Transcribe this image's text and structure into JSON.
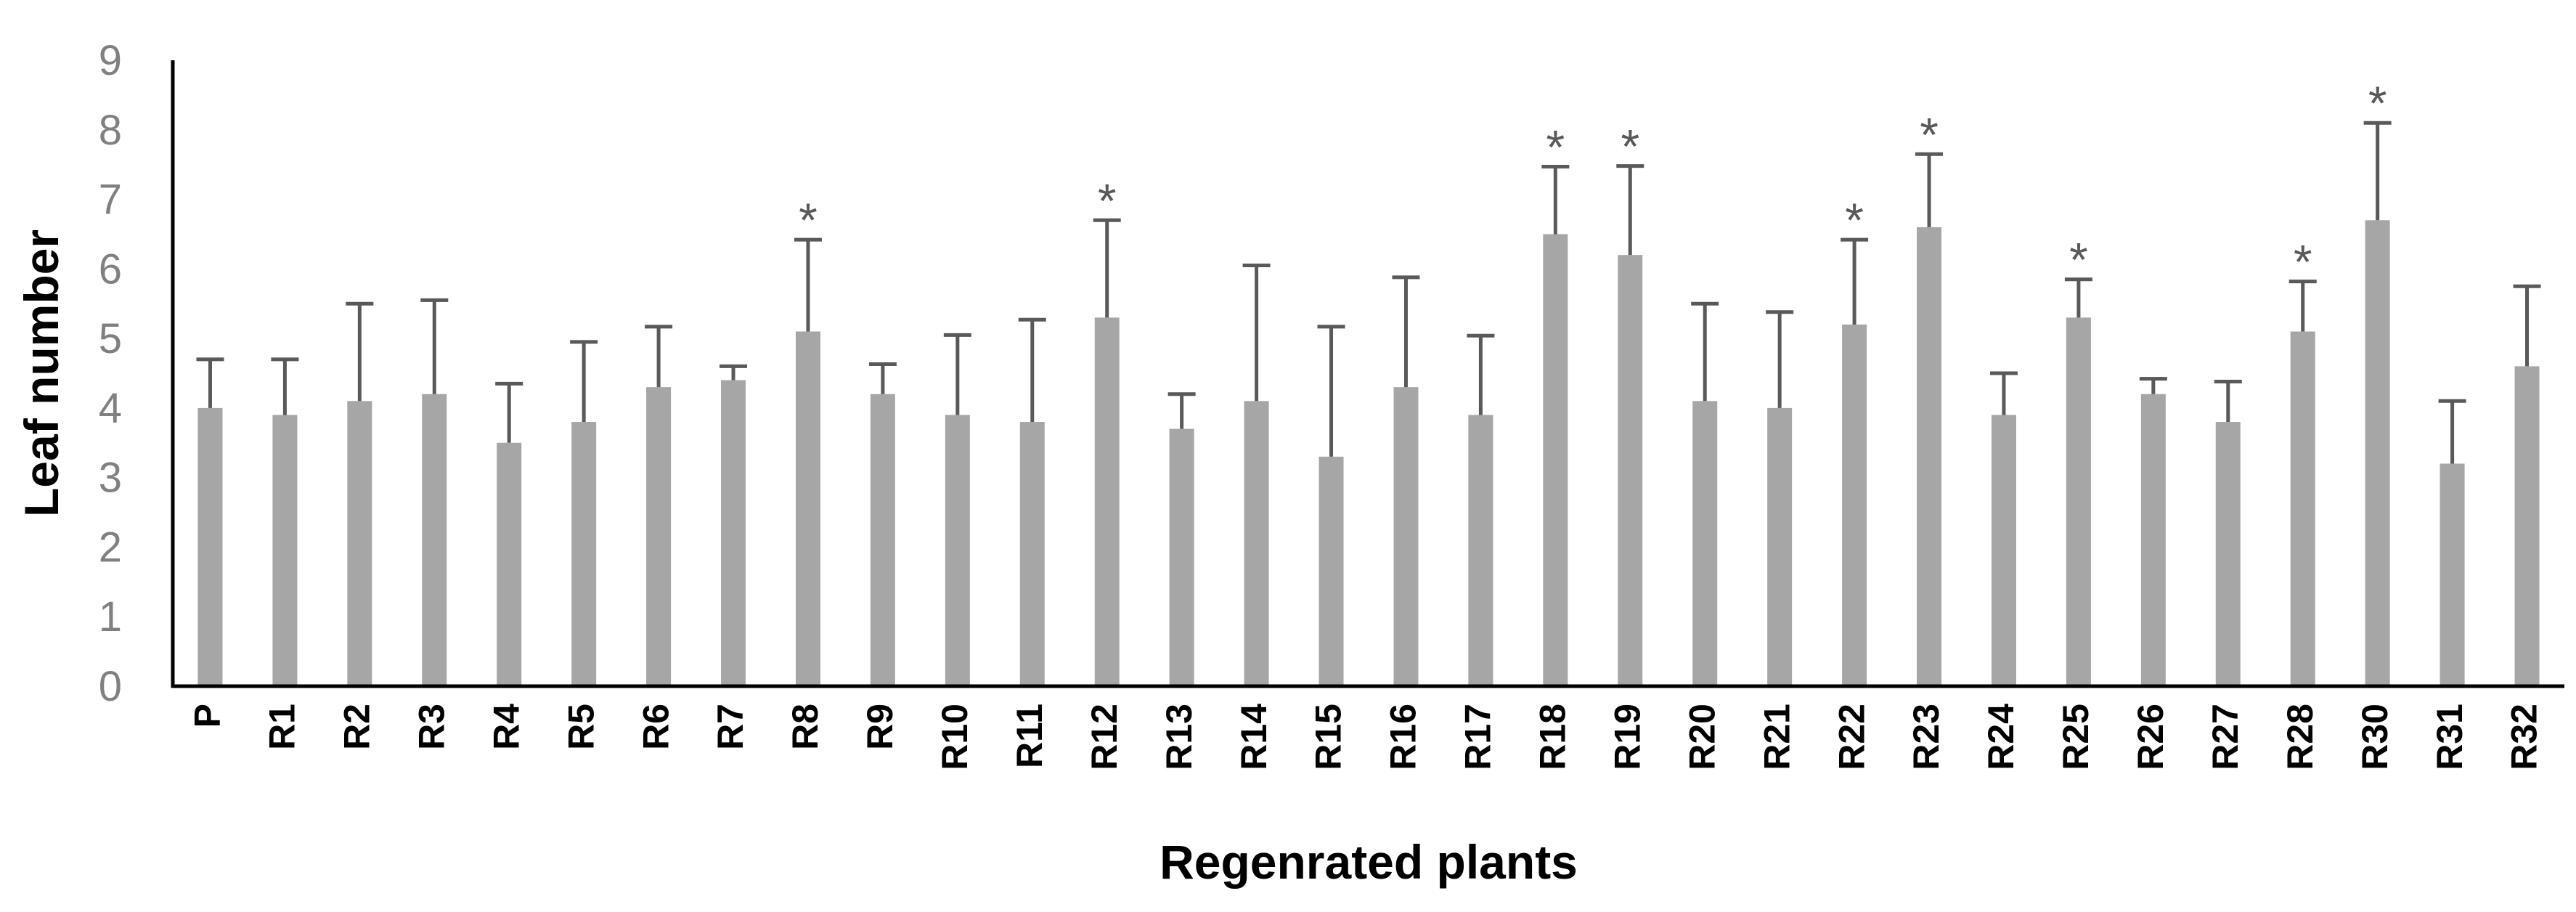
{
  "chart_data": {
    "type": "bar",
    "xlabel": "Regenrated plants",
    "ylabel": "Leaf number",
    "ylim": [
      0,
      9
    ],
    "yticks": [
      0,
      1,
      2,
      3,
      4,
      5,
      6,
      7,
      8,
      9
    ],
    "grid": false,
    "categories": [
      "P",
      "R1",
      "R2",
      "R3",
      "R4",
      "R5",
      "R6",
      "R7",
      "R8",
      "R9",
      "R10",
      "R11",
      "R12",
      "R13",
      "R14",
      "R15",
      "R16",
      "R17",
      "R18",
      "R19",
      "R20",
      "R21",
      "R22",
      "R23",
      "R24",
      "R25",
      "R26",
      "R27",
      "R28",
      "R30",
      "R31",
      "R32"
    ],
    "values": [
      4.0,
      3.9,
      4.1,
      4.2,
      3.5,
      3.8,
      4.3,
      4.4,
      5.1,
      4.2,
      3.9,
      3.8,
      5.3,
      3.7,
      4.1,
      3.3,
      4.3,
      3.9,
      6.5,
      6.2,
      4.1,
      4.0,
      5.2,
      6.6,
      3.9,
      5.3,
      4.2,
      3.8,
      5.1,
      6.7,
      3.2,
      4.6
    ],
    "error_upper": [
      4.7,
      4.7,
      5.5,
      5.55,
      4.35,
      4.95,
      5.17,
      4.6,
      6.42,
      4.63,
      5.05,
      5.27,
      6.7,
      4.2,
      6.05,
      5.17,
      5.88,
      5.04,
      7.47,
      7.48,
      5.5,
      5.38,
      6.42,
      7.65,
      4.5,
      5.85,
      4.42,
      4.38,
      5.82,
      8.1,
      4.1,
      5.75
    ],
    "significant": [
      false,
      false,
      false,
      false,
      false,
      false,
      false,
      false,
      true,
      false,
      false,
      false,
      true,
      false,
      false,
      false,
      false,
      false,
      true,
      true,
      false,
      false,
      true,
      true,
      false,
      true,
      false,
      false,
      true,
      true,
      false,
      false
    ],
    "significance_mark": "*",
    "colors": {
      "bar": "#a6a6a6",
      "error_bar": "#595959",
      "axis": "#000000",
      "tick_label": "#808080"
    }
  }
}
